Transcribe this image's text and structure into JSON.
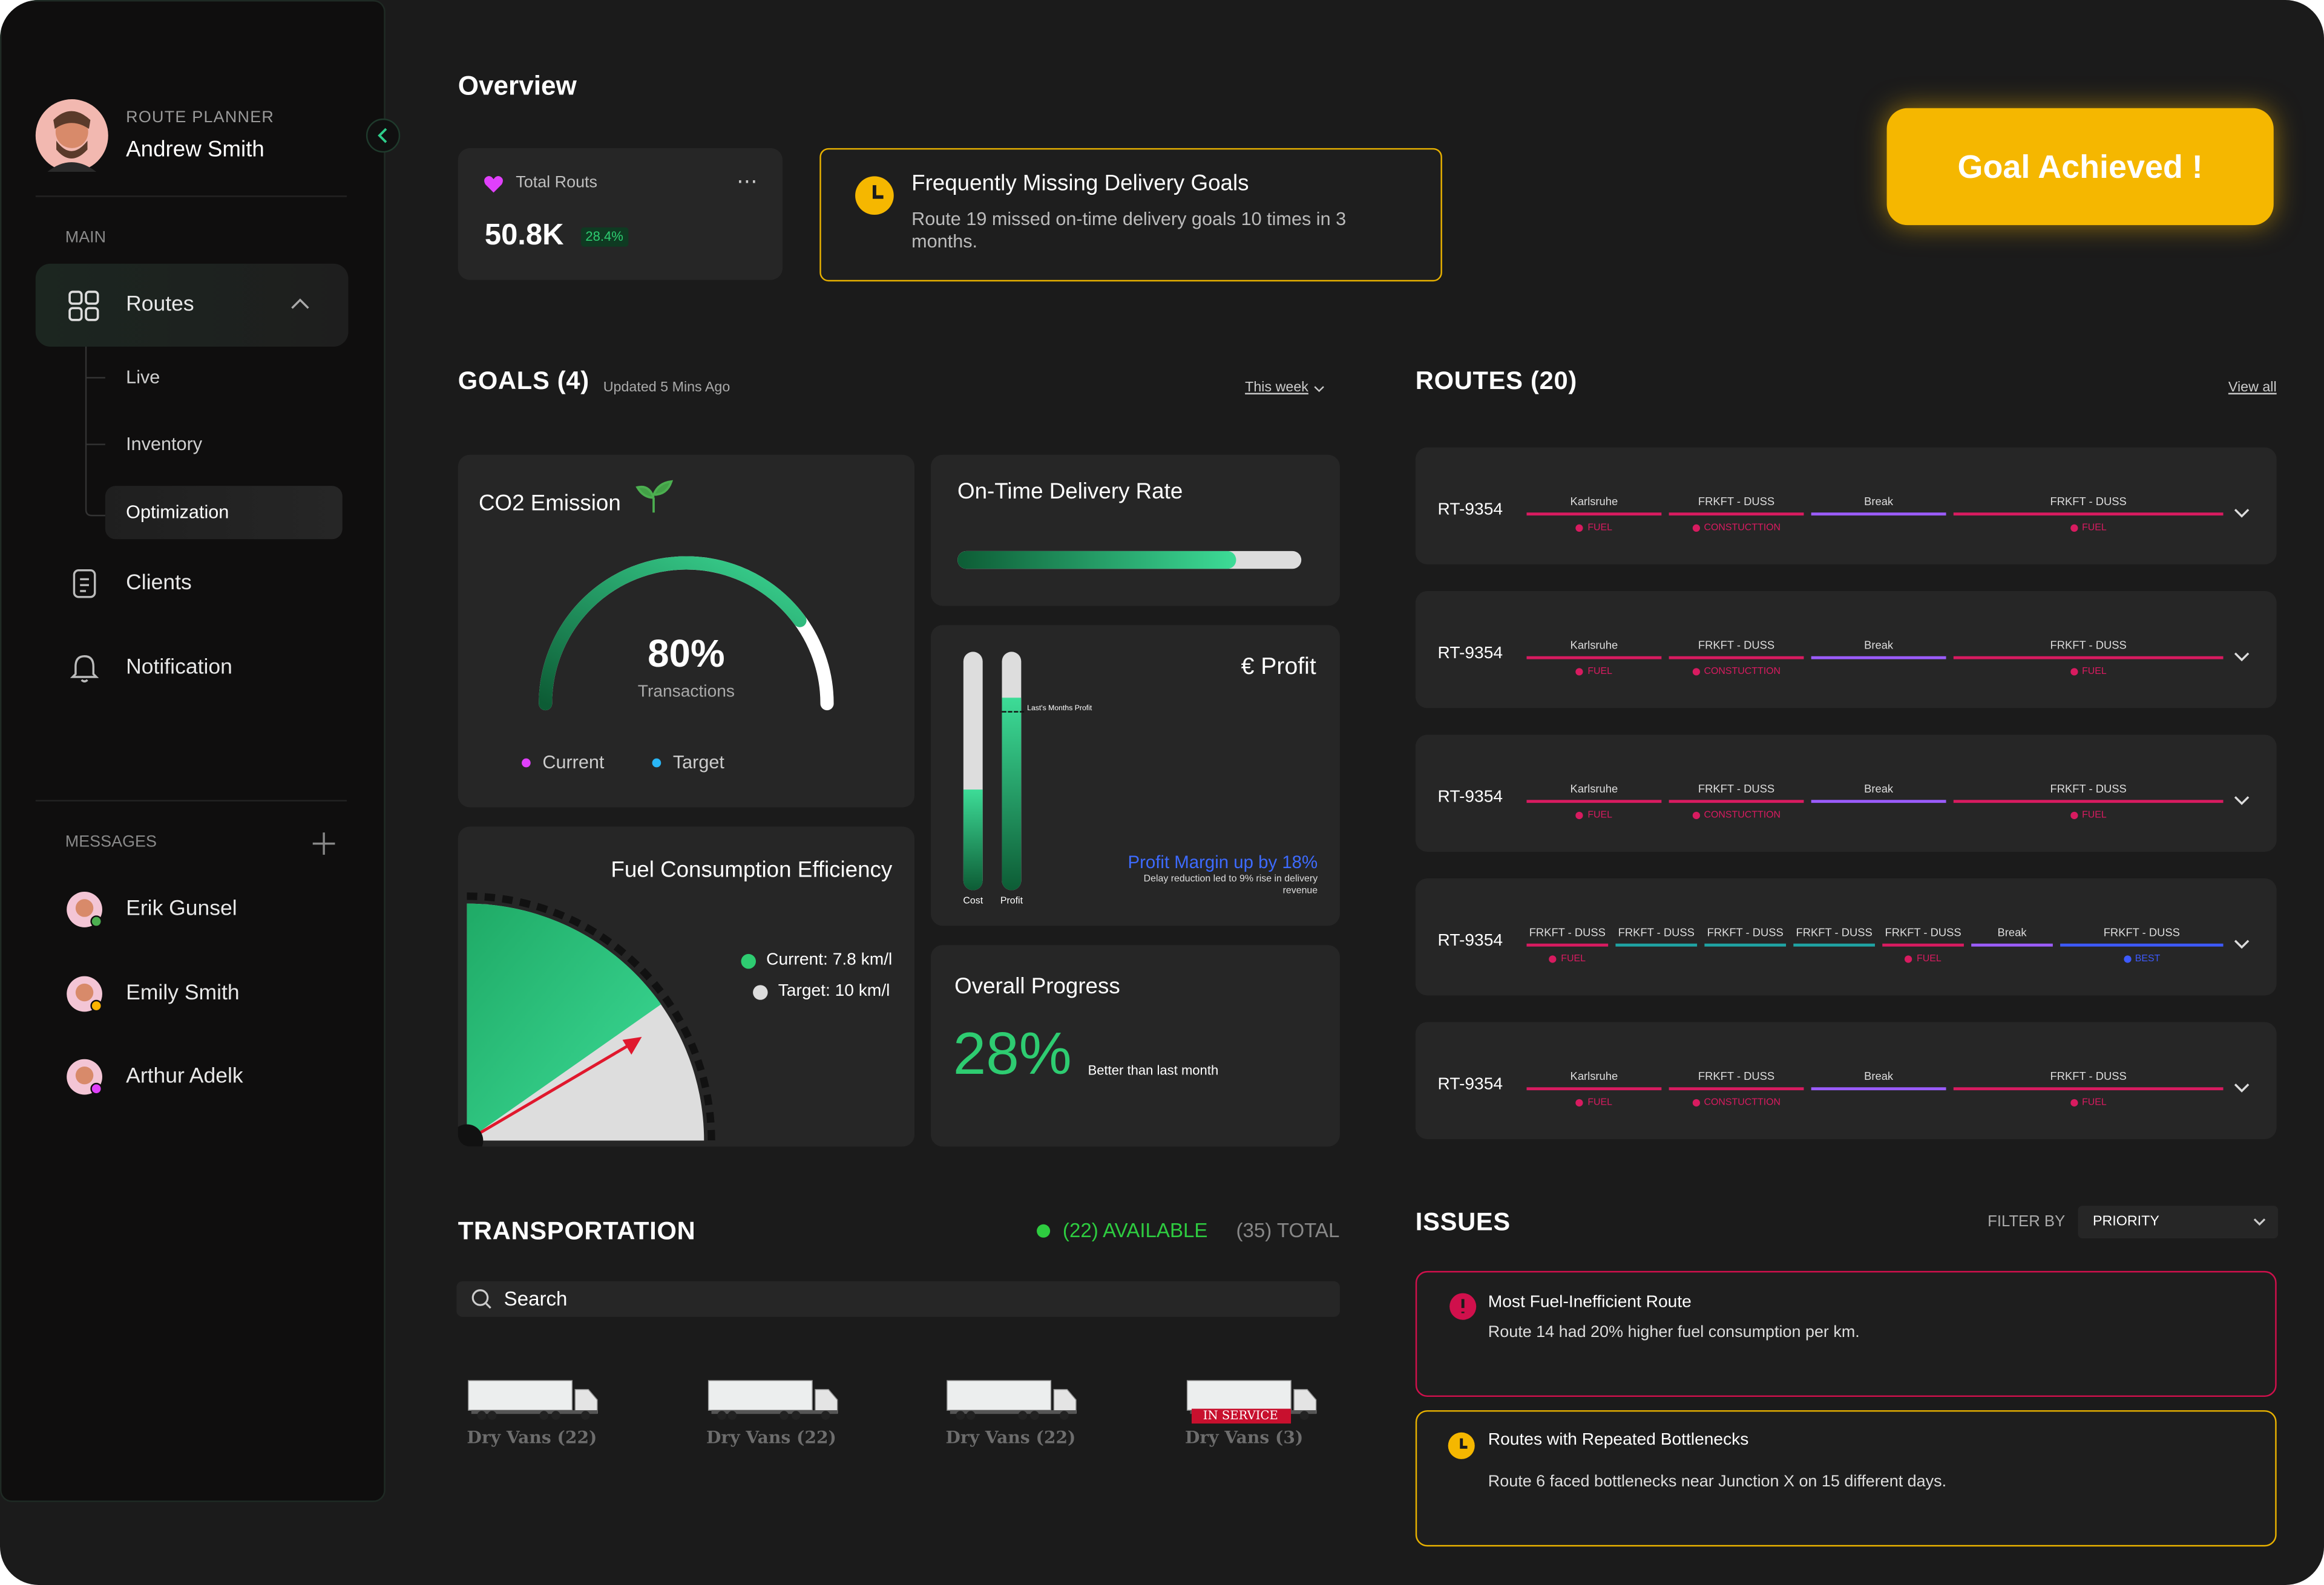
{
  "sidebar": {
    "role": "ROUTE PLANNER",
    "user": "Andrew Smith",
    "main": "MAIN",
    "nav": [
      "Routes",
      "Clients",
      "Notification"
    ],
    "subnav": [
      "Live",
      "Inventory",
      "Optimization"
    ],
    "messages_title": "MESSAGES",
    "messages": [
      "Erik Gunsel",
      "Emily Smith",
      "Arthur Adelk"
    ]
  },
  "overview": {
    "title": "Overview",
    "total": {
      "label": "Total Routs",
      "value": "50.8K",
      "change": "28.4%"
    },
    "alert": {
      "title": "Frequently Missing Delivery Goals",
      "text": "Route 19 missed on-time delivery goals 10 times in 3 months."
    },
    "goal_button": "Goal Achieved !"
  },
  "goals": {
    "title": "GOALS (4)",
    "updated": "Updated 5 Mins Ago",
    "period": "This week",
    "co2": {
      "title": "CO2 Emission",
      "value": 80,
      "label": "80%",
      "caption": "Transactions",
      "legend": [
        "Current",
        "Target"
      ]
    },
    "on_time": {
      "title": "On-Time Delivery Rate",
      "value": 81
    },
    "profit": {
      "title": "€ Profit",
      "bars": [
        {
          "name": "Cost",
          "value": 42
        },
        {
          "name": "Profit",
          "value": 81
        }
      ],
      "last_month": {
        "label": "Last's Months Profit",
        "value": 75
      },
      "headline": "Profit Margin up by 18%",
      "note": "Delay reduction led to 9% rise in delivery revenue"
    },
    "fuel": {
      "title": "Fuel Consumption Efficiency",
      "current": "Current: 7.8 km/l",
      "target": "Target: 10 km/l"
    },
    "progress": {
      "title": "Overall Progress",
      "value": "28%",
      "note": "Better than last month"
    }
  },
  "routes": {
    "title": "ROUTES (20)",
    "view_all": "View all",
    "rows": [
      {
        "id": "RT-9354",
        "segments": [
          {
            "label": "Karlsruhe",
            "tag": "FUEL",
            "color": "#d81b60"
          },
          {
            "label": "FRKFT - DUSS",
            "tag": "CONSTUCTTION",
            "color": "#d81b60"
          },
          {
            "label": "Break",
            "color": "#9b5cff"
          },
          {
            "label": "FRKFT - DUSS",
            "tag": "FUEL",
            "color": "#d81b60"
          }
        ]
      },
      {
        "id": "RT-9354",
        "segments": [
          {
            "label": "Karlsruhe",
            "tag": "FUEL",
            "color": "#d81b60"
          },
          {
            "label": "FRKFT - DUSS",
            "tag": "CONSTUCTTION",
            "color": "#d81b60"
          },
          {
            "label": "Break",
            "color": "#9b5cff"
          },
          {
            "label": "FRKFT - DUSS",
            "tag": "FUEL",
            "color": "#d81b60"
          }
        ]
      },
      {
        "id": "RT-9354",
        "segments": [
          {
            "label": "Karlsruhe",
            "tag": "FUEL",
            "color": "#d81b60"
          },
          {
            "label": "FRKFT - DUSS",
            "tag": "CONSTUCTTION",
            "color": "#d81b60"
          },
          {
            "label": "Break",
            "color": "#9b5cff"
          },
          {
            "label": "FRKFT - DUSS",
            "tag": "FUEL",
            "color": "#d81b60"
          }
        ]
      },
      {
        "id": "RT-9354",
        "segments": [
          {
            "label": "FRKFT - DUSS",
            "tag": "FUEL",
            "color": "#d81b60"
          },
          {
            "label": "FRKFT - DUSS",
            "color": "#1fa3a3"
          },
          {
            "label": "FRKFT - DUSS",
            "color": "#1fa3a3"
          },
          {
            "label": "FRKFT - DUSS",
            "color": "#1fa3a3"
          },
          {
            "label": "FRKFT - DUSS",
            "tag": "FUEL",
            "color": "#d81b60"
          },
          {
            "label": "Break",
            "color": "#9b5cff"
          },
          {
            "label": "FRKFT - DUSS",
            "tag": "BEST",
            "color": "#3d5afe"
          }
        ]
      },
      {
        "id": "RT-9354",
        "segments": [
          {
            "label": "Karlsruhe",
            "tag": "FUEL",
            "color": "#d81b60"
          },
          {
            "label": "FRKFT - DUSS",
            "tag": "CONSTUCTTION",
            "color": "#d81b60"
          },
          {
            "label": "Break",
            "color": "#9b5cff"
          },
          {
            "label": "FRKFT - DUSS",
            "tag": "FUEL",
            "color": "#d81b60"
          }
        ]
      }
    ]
  },
  "transportation": {
    "title": "TRANSPORTATION",
    "available": "(22) AVAILABLE",
    "total": "(35) TOTAL",
    "search": "Search",
    "vehicles": [
      {
        "label": "Dry Vans (22)"
      },
      {
        "label": "Dry Vans (22)"
      },
      {
        "label": "Dry Vans (22)"
      },
      {
        "label": "Dry Vans (3)",
        "status": "IN SERVICE"
      }
    ]
  },
  "issues": {
    "title": "ISSUES",
    "filter_label": "FILTER BY",
    "filter": "PRIORITY",
    "items": [
      {
        "title": "Most Fuel-Inefficient Route",
        "text": "Route 14 had 20% higher fuel consumption per km."
      },
      {
        "title": "Routes with Repeated Bottlenecks",
        "text": "Route 6 faced bottlenecks near Junction X on 15 different days."
      }
    ]
  }
}
